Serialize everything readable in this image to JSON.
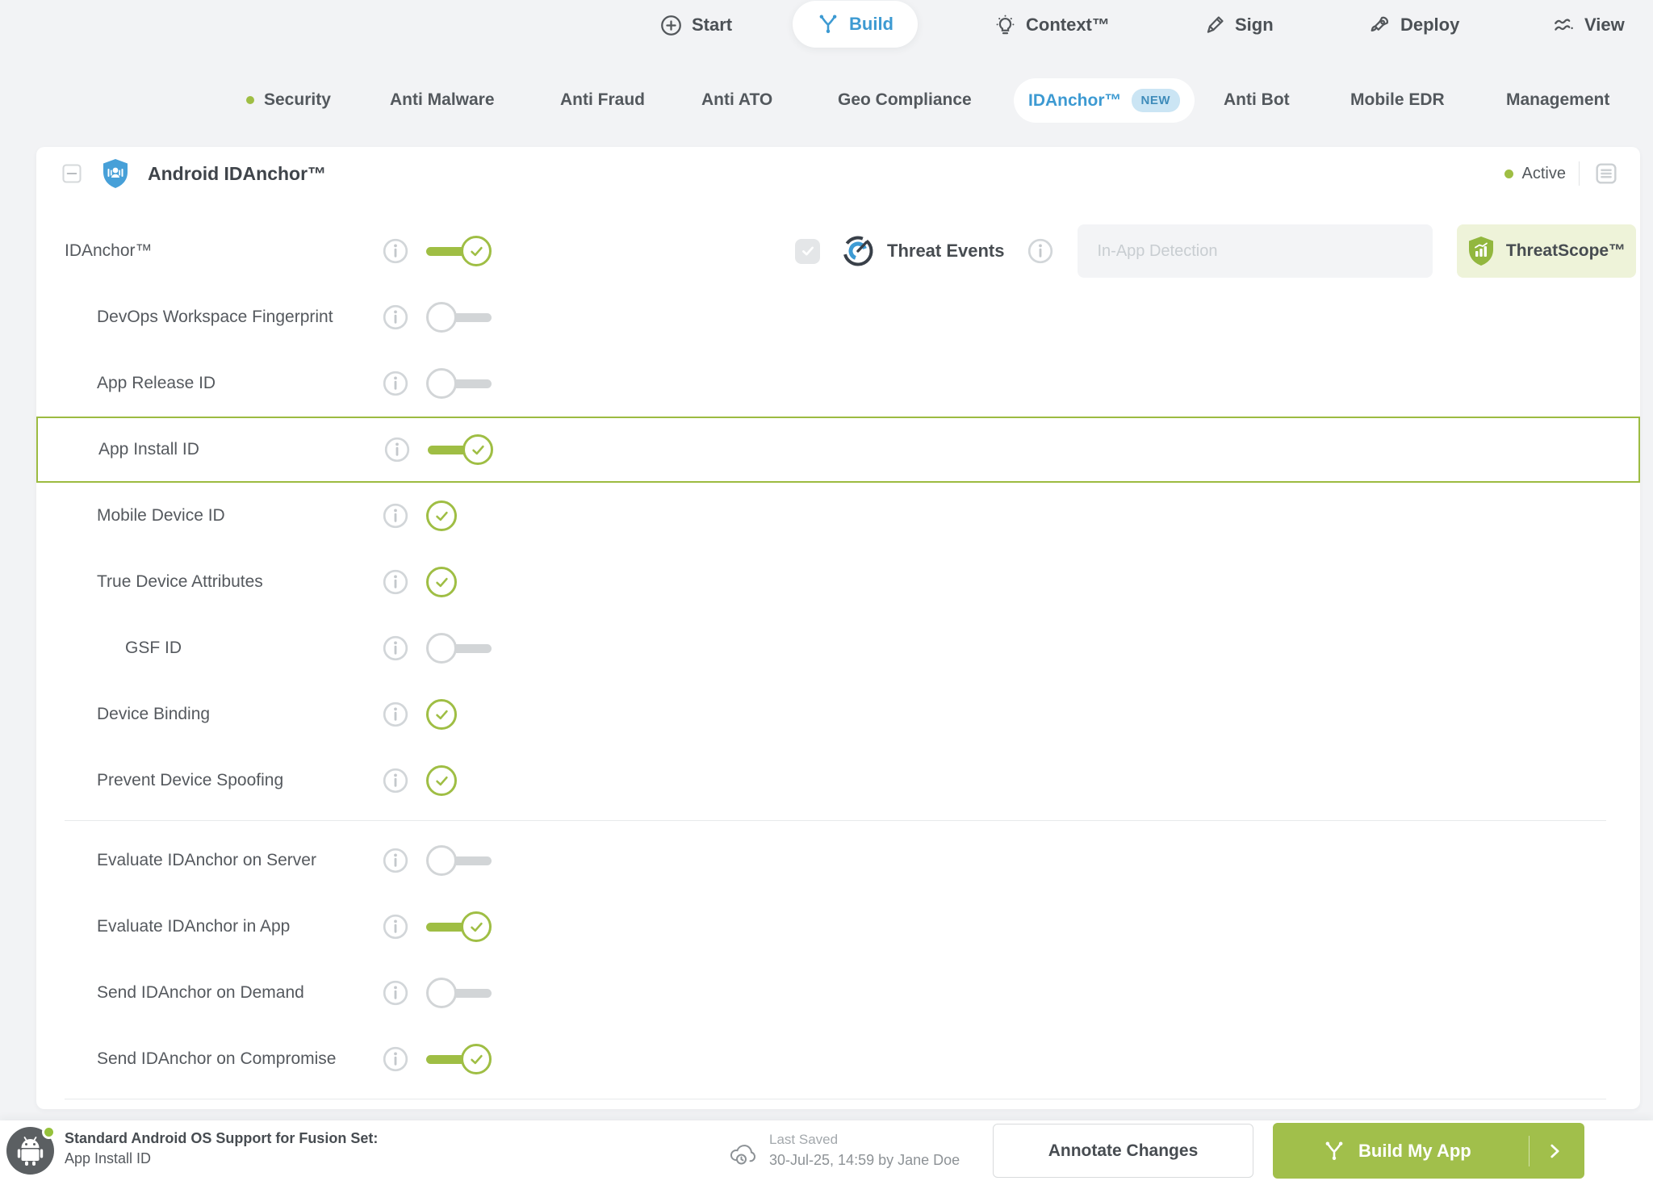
{
  "nav": {
    "items": [
      {
        "label": "Start"
      },
      {
        "label": "Build"
      },
      {
        "label": "Context™"
      },
      {
        "label": "Sign"
      },
      {
        "label": "Deploy"
      },
      {
        "label": "View"
      }
    ]
  },
  "subnav": {
    "items": [
      {
        "label": "Security",
        "active_dot": true
      },
      {
        "label": "Anti Malware"
      },
      {
        "label": "Anti Fraud"
      },
      {
        "label": "Anti ATO"
      },
      {
        "label": "Geo Compliance"
      },
      {
        "label": "IDAnchor™",
        "badge": "NEW",
        "selected": true
      },
      {
        "label": "Anti Bot"
      },
      {
        "label": "Mobile EDR"
      },
      {
        "label": "Management"
      }
    ]
  },
  "panel": {
    "title": "Android IDAnchor™",
    "status": "Active",
    "rows": [
      {
        "label": "IDAnchor™",
        "indent": 1,
        "control": "toggle-on",
        "threat_events": true
      },
      {
        "label": "DevOps Workspace Fingerprint",
        "indent": 2,
        "control": "toggle-off"
      },
      {
        "label": "App Release ID",
        "indent": 2,
        "control": "toggle-off"
      },
      {
        "label": "App Install ID",
        "indent": 2,
        "control": "toggle-on",
        "highlighted": true
      },
      {
        "label": "Mobile Device ID",
        "indent": 2,
        "control": "check"
      },
      {
        "label": "True Device Attributes",
        "indent": 2,
        "control": "check"
      },
      {
        "label": "GSF ID",
        "indent": 3,
        "control": "toggle-off"
      },
      {
        "label": "Device Binding",
        "indent": 2,
        "control": "check"
      },
      {
        "label": "Prevent Device Spoofing",
        "indent": 2,
        "control": "check",
        "divider_after": true
      },
      {
        "label": "Evaluate IDAnchor on Server",
        "indent": 2,
        "control": "toggle-off"
      },
      {
        "label": "Evaluate IDAnchor in App",
        "indent": 2,
        "control": "toggle-on"
      },
      {
        "label": "Send IDAnchor on Demand",
        "indent": 2,
        "control": "toggle-off"
      },
      {
        "label": "Send IDAnchor on Compromise",
        "indent": 2,
        "control": "toggle-on",
        "divider_after": true
      }
    ]
  },
  "threat_events": {
    "checkbox_checked": true,
    "label": "Threat Events",
    "input_placeholder": "In-App Detection",
    "input_value": "",
    "button_label": "ThreatScope™"
  },
  "footer": {
    "fusion_title": "Standard Android OS Support for Fusion Set:",
    "fusion_value": "App Install ID",
    "last_saved_label": "Last Saved",
    "last_saved_value": "30-Jul-25, 14:59 by Jane Doe",
    "annotate_button": "Annotate Changes",
    "build_button": "Build My App"
  },
  "colors": {
    "accent_green": "#9fbe44",
    "accent_blue": "#3d9ad2",
    "threatscope_bg": "#eef3d9",
    "build_button_bg": "#a1bf4b",
    "new_badge_bg": "#cbe5f4"
  }
}
